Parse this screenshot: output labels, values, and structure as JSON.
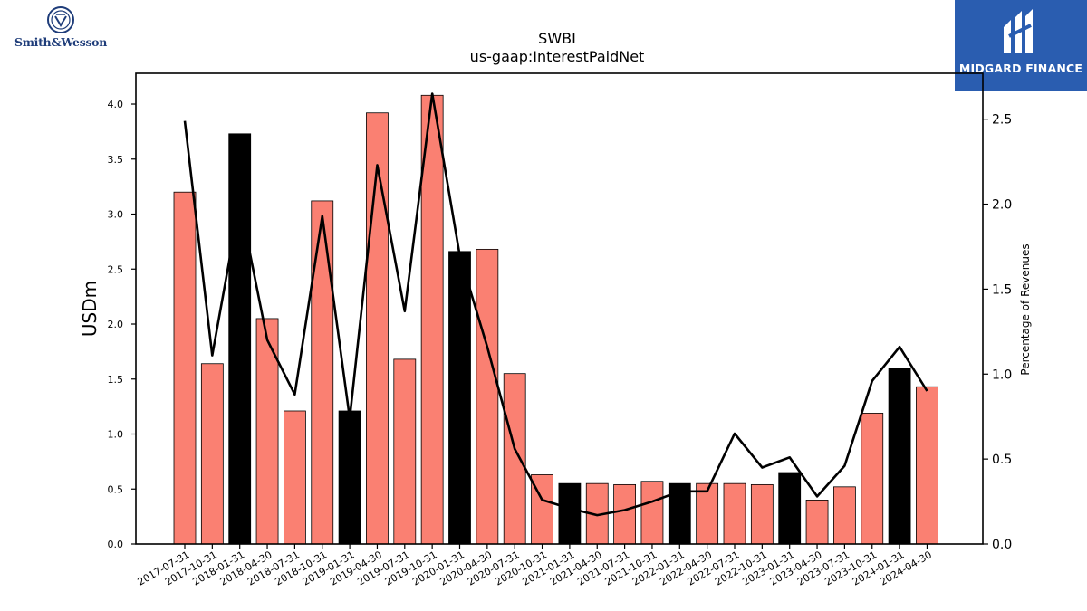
{
  "header": {
    "title": "SWBI",
    "subtitle": "us-gaap:InterestPaidNet"
  },
  "logos": {
    "left_wordmark": "Smith&Wesson",
    "right_wordmark": "MIDGARD FINANCE"
  },
  "colors": {
    "bar_default": "#fa8072",
    "bar_highlight": "#000000",
    "line": "#000000",
    "brand_right_bg": "#2a5db0"
  },
  "chart_data": {
    "type": "bar",
    "title": "SWBI",
    "subtitle": "us-gaap:InterestPaidNet",
    "ylabel": "USDm",
    "y2label": "Percentage of Revenues",
    "ylim": [
      0,
      4.28
    ],
    "y2lim": [
      0,
      2.77
    ],
    "yticks": [
      "0.0",
      "0.5",
      "1.0",
      "1.5",
      "2.0",
      "2.5",
      "3.0",
      "3.5",
      "4.0"
    ],
    "y2ticks": [
      "0.0",
      "0.5",
      "1.0",
      "1.5",
      "2.0",
      "2.5"
    ],
    "grid": false,
    "categories": [
      "2017-07-31",
      "2017-10-31",
      "2018-01-31",
      "2018-04-30",
      "2018-07-31",
      "2018-10-31",
      "2019-01-31",
      "2019-04-30",
      "2019-07-31",
      "2019-10-31",
      "2020-01-31",
      "2020-04-30",
      "2020-07-31",
      "2020-10-31",
      "2021-01-31",
      "2021-04-30",
      "2021-07-31",
      "2021-10-31",
      "2022-01-31",
      "2022-04-30",
      "2022-07-31",
      "2022-10-31",
      "2023-01-31",
      "2023-04-30",
      "2023-07-31",
      "2023-10-31",
      "2024-01-31",
      "2024-04-30"
    ],
    "values": [
      3.2,
      1.64,
      3.73,
      2.05,
      1.21,
      3.12,
      1.21,
      3.92,
      1.68,
      4.08,
      2.66,
      2.68,
      1.55,
      0.63,
      0.55,
      0.55,
      0.54,
      0.57,
      0.55,
      0.55,
      0.55,
      0.54,
      0.65,
      0.4,
      0.52,
      1.19,
      1.6,
      1.43
    ],
    "highlight": [
      false,
      false,
      true,
      false,
      false,
      false,
      true,
      false,
      false,
      false,
      true,
      false,
      false,
      false,
      true,
      false,
      false,
      false,
      true,
      false,
      false,
      false,
      true,
      false,
      false,
      false,
      true,
      false
    ],
    "series": [
      {
        "axis": "secondary",
        "type": "line",
        "values": [
          2.49,
          1.11,
          2.01,
          1.2,
          0.88,
          1.93,
          0.74,
          2.23,
          1.37,
          2.65,
          1.7,
          1.16,
          0.56,
          0.26,
          0.21,
          0.17,
          0.2,
          0.25,
          0.31,
          0.31,
          0.65,
          0.45,
          0.51,
          0.28,
          0.46,
          0.96,
          1.16,
          0.9
        ]
      }
    ]
  }
}
